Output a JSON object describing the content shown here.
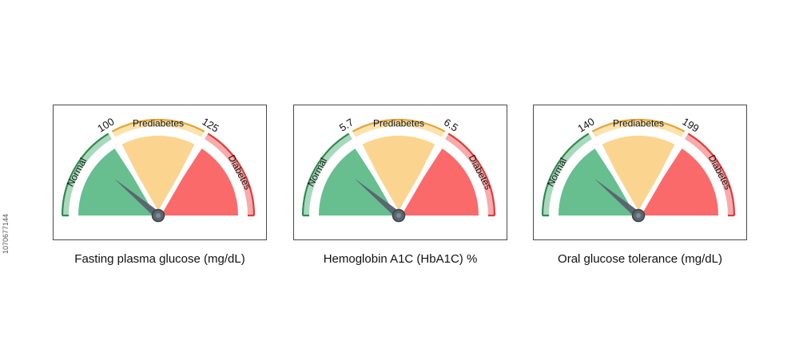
{
  "gauges": [
    {
      "caption": "Fasting plasma glucose (mg/dL)",
      "low_threshold": "100",
      "high_threshold": "125",
      "zones": [
        "Normal",
        "Prediabetes",
        "Diabetes"
      ]
    },
    {
      "caption": "Hemoglobin A1C (HbA1C) %",
      "low_threshold": "5.7",
      "high_threshold": "6.5",
      "zones": [
        "Normal",
        "Prediabetes",
        "Diabetes"
      ]
    },
    {
      "caption": "Oral glucose tolerance (mg/dL)",
      "low_threshold": "140",
      "high_threshold": "199",
      "zones": [
        "Normal",
        "Prediabetes",
        "Diabetes"
      ]
    }
  ],
  "colors": {
    "normal": "#67be8f",
    "normal_light": "#a8d9bc",
    "normal_border": "#2e8b4e",
    "prediabetes": "#fbd48f",
    "prediabetes_light": "#fde2ab",
    "prediabetes_border": "#e0a53a",
    "diabetes": "#fa6a6a",
    "diabetes_light": "#f9aaaa",
    "diabetes_border": "#e23a3a",
    "needle": "#5a6670"
  },
  "stock_id": "1070677144"
}
